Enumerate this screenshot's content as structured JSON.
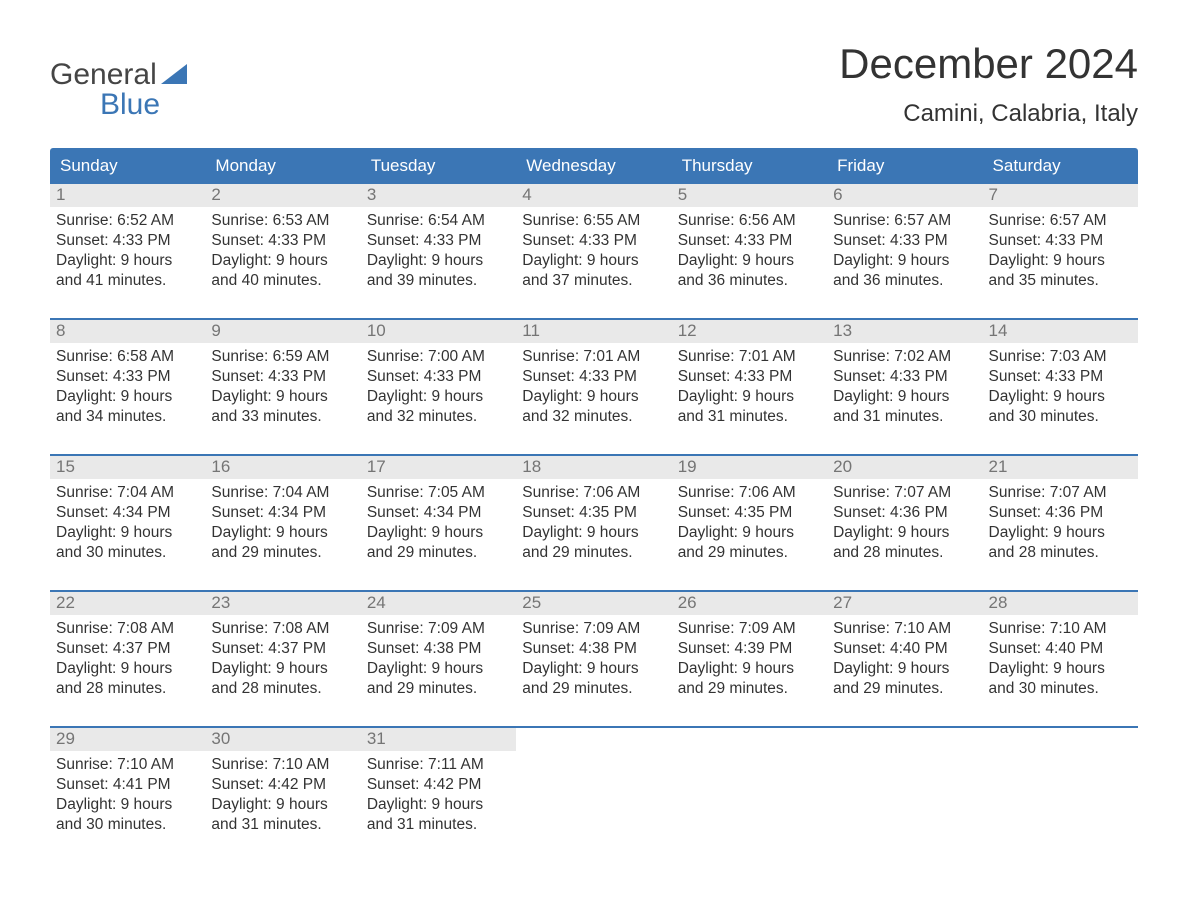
{
  "brand": {
    "line1": "General",
    "line2": "Blue",
    "accent_color": "#3b76b5"
  },
  "title": {
    "month": "December 2024",
    "location": "Camini, Calabria, Italy"
  },
  "colors": {
    "header_bg": "#3b76b5",
    "header_text": "#ffffff",
    "daynum_bg": "#e9e9e9",
    "daynum_text": "#757575",
    "body_text": "#333333",
    "week_separator": "#3b76b5",
    "page_bg": "#ffffff"
  },
  "day_labels": [
    "Sunday",
    "Monday",
    "Tuesday",
    "Wednesday",
    "Thursday",
    "Friday",
    "Saturday"
  ],
  "weeks": [
    [
      {
        "num": "1",
        "sunrise": "Sunrise: 6:52 AM",
        "sunset": "Sunset: 4:33 PM",
        "day1": "Daylight: 9 hours",
        "day2": "and 41 minutes."
      },
      {
        "num": "2",
        "sunrise": "Sunrise: 6:53 AM",
        "sunset": "Sunset: 4:33 PM",
        "day1": "Daylight: 9 hours",
        "day2": "and 40 minutes."
      },
      {
        "num": "3",
        "sunrise": "Sunrise: 6:54 AM",
        "sunset": "Sunset: 4:33 PM",
        "day1": "Daylight: 9 hours",
        "day2": "and 39 minutes."
      },
      {
        "num": "4",
        "sunrise": "Sunrise: 6:55 AM",
        "sunset": "Sunset: 4:33 PM",
        "day1": "Daylight: 9 hours",
        "day2": "and 37 minutes."
      },
      {
        "num": "5",
        "sunrise": "Sunrise: 6:56 AM",
        "sunset": "Sunset: 4:33 PM",
        "day1": "Daylight: 9 hours",
        "day2": "and 36 minutes."
      },
      {
        "num": "6",
        "sunrise": "Sunrise: 6:57 AM",
        "sunset": "Sunset: 4:33 PM",
        "day1": "Daylight: 9 hours",
        "day2": "and 36 minutes."
      },
      {
        "num": "7",
        "sunrise": "Sunrise: 6:57 AM",
        "sunset": "Sunset: 4:33 PM",
        "day1": "Daylight: 9 hours",
        "day2": "and 35 minutes."
      }
    ],
    [
      {
        "num": "8",
        "sunrise": "Sunrise: 6:58 AM",
        "sunset": "Sunset: 4:33 PM",
        "day1": "Daylight: 9 hours",
        "day2": "and 34 minutes."
      },
      {
        "num": "9",
        "sunrise": "Sunrise: 6:59 AM",
        "sunset": "Sunset: 4:33 PM",
        "day1": "Daylight: 9 hours",
        "day2": "and 33 minutes."
      },
      {
        "num": "10",
        "sunrise": "Sunrise: 7:00 AM",
        "sunset": "Sunset: 4:33 PM",
        "day1": "Daylight: 9 hours",
        "day2": "and 32 minutes."
      },
      {
        "num": "11",
        "sunrise": "Sunrise: 7:01 AM",
        "sunset": "Sunset: 4:33 PM",
        "day1": "Daylight: 9 hours",
        "day2": "and 32 minutes."
      },
      {
        "num": "12",
        "sunrise": "Sunrise: 7:01 AM",
        "sunset": "Sunset: 4:33 PM",
        "day1": "Daylight: 9 hours",
        "day2": "and 31 minutes."
      },
      {
        "num": "13",
        "sunrise": "Sunrise: 7:02 AM",
        "sunset": "Sunset: 4:33 PM",
        "day1": "Daylight: 9 hours",
        "day2": "and 31 minutes."
      },
      {
        "num": "14",
        "sunrise": "Sunrise: 7:03 AM",
        "sunset": "Sunset: 4:33 PM",
        "day1": "Daylight: 9 hours",
        "day2": "and 30 minutes."
      }
    ],
    [
      {
        "num": "15",
        "sunrise": "Sunrise: 7:04 AM",
        "sunset": "Sunset: 4:34 PM",
        "day1": "Daylight: 9 hours",
        "day2": "and 30 minutes."
      },
      {
        "num": "16",
        "sunrise": "Sunrise: 7:04 AM",
        "sunset": "Sunset: 4:34 PM",
        "day1": "Daylight: 9 hours",
        "day2": "and 29 minutes."
      },
      {
        "num": "17",
        "sunrise": "Sunrise: 7:05 AM",
        "sunset": "Sunset: 4:34 PM",
        "day1": "Daylight: 9 hours",
        "day2": "and 29 minutes."
      },
      {
        "num": "18",
        "sunrise": "Sunrise: 7:06 AM",
        "sunset": "Sunset: 4:35 PM",
        "day1": "Daylight: 9 hours",
        "day2": "and 29 minutes."
      },
      {
        "num": "19",
        "sunrise": "Sunrise: 7:06 AM",
        "sunset": "Sunset: 4:35 PM",
        "day1": "Daylight: 9 hours",
        "day2": "and 29 minutes."
      },
      {
        "num": "20",
        "sunrise": "Sunrise: 7:07 AM",
        "sunset": "Sunset: 4:36 PM",
        "day1": "Daylight: 9 hours",
        "day2": "and 28 minutes."
      },
      {
        "num": "21",
        "sunrise": "Sunrise: 7:07 AM",
        "sunset": "Sunset: 4:36 PM",
        "day1": "Daylight: 9 hours",
        "day2": "and 28 minutes."
      }
    ],
    [
      {
        "num": "22",
        "sunrise": "Sunrise: 7:08 AM",
        "sunset": "Sunset: 4:37 PM",
        "day1": "Daylight: 9 hours",
        "day2": "and 28 minutes."
      },
      {
        "num": "23",
        "sunrise": "Sunrise: 7:08 AM",
        "sunset": "Sunset: 4:37 PM",
        "day1": "Daylight: 9 hours",
        "day2": "and 28 minutes."
      },
      {
        "num": "24",
        "sunrise": "Sunrise: 7:09 AM",
        "sunset": "Sunset: 4:38 PM",
        "day1": "Daylight: 9 hours",
        "day2": "and 29 minutes."
      },
      {
        "num": "25",
        "sunrise": "Sunrise: 7:09 AM",
        "sunset": "Sunset: 4:38 PM",
        "day1": "Daylight: 9 hours",
        "day2": "and 29 minutes."
      },
      {
        "num": "26",
        "sunrise": "Sunrise: 7:09 AM",
        "sunset": "Sunset: 4:39 PM",
        "day1": "Daylight: 9 hours",
        "day2": "and 29 minutes."
      },
      {
        "num": "27",
        "sunrise": "Sunrise: 7:10 AM",
        "sunset": "Sunset: 4:40 PM",
        "day1": "Daylight: 9 hours",
        "day2": "and 29 minutes."
      },
      {
        "num": "28",
        "sunrise": "Sunrise: 7:10 AM",
        "sunset": "Sunset: 4:40 PM",
        "day1": "Daylight: 9 hours",
        "day2": "and 30 minutes."
      }
    ],
    [
      {
        "num": "29",
        "sunrise": "Sunrise: 7:10 AM",
        "sunset": "Sunset: 4:41 PM",
        "day1": "Daylight: 9 hours",
        "day2": "and 30 minutes."
      },
      {
        "num": "30",
        "sunrise": "Sunrise: 7:10 AM",
        "sunset": "Sunset: 4:42 PM",
        "day1": "Daylight: 9 hours",
        "day2": "and 31 minutes."
      },
      {
        "num": "31",
        "sunrise": "Sunrise: 7:11 AM",
        "sunset": "Sunset: 4:42 PM",
        "day1": "Daylight: 9 hours",
        "day2": "and 31 minutes."
      },
      null,
      null,
      null,
      null
    ]
  ]
}
